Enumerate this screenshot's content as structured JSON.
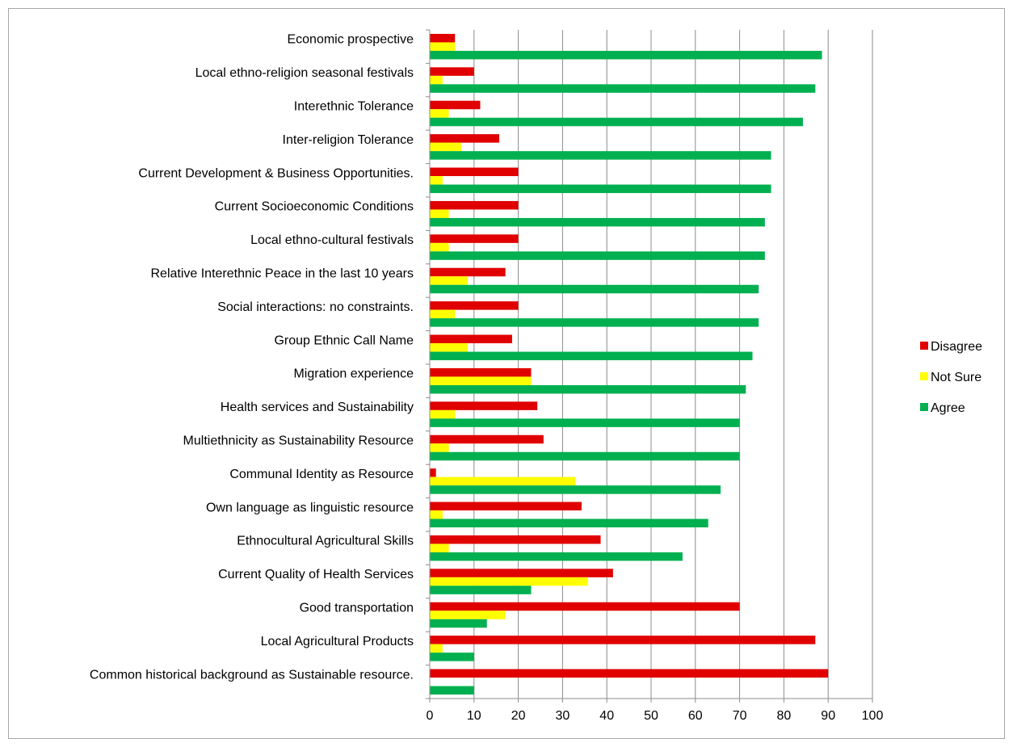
{
  "chart_data": {
    "type": "bar",
    "orientation": "horizontal",
    "categories": [
      "Economic prospective",
      "Local ethno-religion seasonal festivals",
      "Interethnic Tolerance",
      "Inter-religion Tolerance",
      "Current Development & Business Opportunities.",
      "Current Socioeconomic Conditions",
      "Local ethno-cultural festivals",
      "Relative Interethnic Peace in the last 10 years",
      "Social interactions: no constraints.",
      "Group Ethnic Call Name",
      "Migration experience",
      "Health services and Sustainability",
      "Multiethnicity as Sustainability Resource",
      "Communal Identity as Resource",
      "Own language as linguistic resource",
      "Ethnocultural Agricultural Skills",
      "Current Quality of Health Services",
      "Good transportation",
      "Local Agricultural Products",
      "Common historical background as Sustainable resource."
    ],
    "series": [
      {
        "name": "Disagree",
        "color": "#e00000",
        "values": [
          5.7,
          10,
          11.4,
          15.7,
          20,
          20,
          20,
          17.1,
          20,
          18.6,
          22.9,
          24.3,
          25.7,
          1.4,
          34.3,
          38.6,
          41.4,
          70,
          87.1,
          90
        ]
      },
      {
        "name": "Not Sure",
        "color": "#ffff00",
        "values": [
          5.7,
          2.9,
          4.3,
          7.1,
          2.9,
          4.3,
          4.3,
          8.6,
          5.7,
          8.6,
          22.9,
          5.7,
          4.3,
          32.9,
          2.9,
          4.3,
          35.7,
          17.1,
          2.9,
          0
        ]
      },
      {
        "name": "Agree",
        "color": "#00b050",
        "values": [
          88.6,
          87.1,
          84.3,
          77.1,
          77.1,
          75.7,
          75.7,
          74.3,
          74.3,
          72.9,
          71.4,
          70,
          70,
          65.7,
          62.9,
          57.1,
          22.9,
          12.9,
          10,
          10
        ]
      }
    ],
    "xlim": [
      0,
      100
    ],
    "xticks": [
      0,
      10,
      20,
      30,
      40,
      50,
      60,
      70,
      80,
      90,
      100
    ],
    "grid": "vertical",
    "legend_position": "right",
    "title": "",
    "xlabel": "",
    "ylabel": ""
  }
}
